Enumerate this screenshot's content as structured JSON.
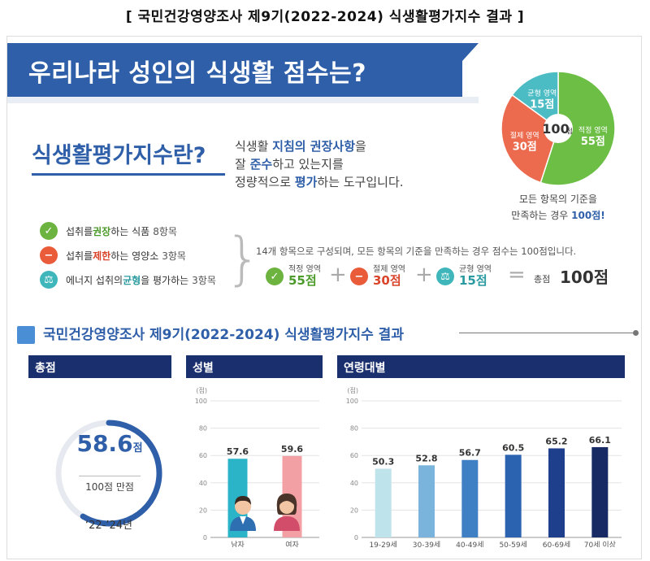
{
  "caption": "[ 국민건강영양조사 제9기(2022-2024) 식생활평가지수 결과 ]",
  "banner": {
    "title": "우리나라 성인의 식생활 점수는?"
  },
  "definition": {
    "title": "식생활평가지수란?",
    "line1_pre": "식생활 ",
    "line1_hl": "지침의 권장사항",
    "line1_post": "을",
    "line2_pre": "잘 ",
    "line2_hl": "준수",
    "line2_post": "하고 있는지를",
    "line3_pre": "정량적으로 ",
    "line3_hl": "평가",
    "line3_post": "하는 도구입니다."
  },
  "pie": {
    "center_value": "100",
    "center_unit": "점",
    "segments": [
      {
        "name": "적정 영역",
        "value": "55점",
        "score": 55,
        "color": "#6cbe45"
      },
      {
        "name": "절제 영역",
        "value": "30점",
        "score": 30,
        "color": "#ec6b4f"
      },
      {
        "name": "균형 영역",
        "value": "15점",
        "score": 15,
        "color": "#4bbcc3"
      }
    ],
    "caption_line1": "모든 항목의 기준을",
    "caption_line2_pre": "만족하는 경우 ",
    "caption_line2_hl": "100점!"
  },
  "components": [
    {
      "icon": "check-icon",
      "color": "#6cb33f",
      "pre": "섭취를 ",
      "hl": "권장",
      "post": "하는 식품",
      "count": "8항목"
    },
    {
      "icon": "minus-icon",
      "color": "#ea5b3a",
      "pre": "섭취를 ",
      "hl": "제한",
      "post": "하는 영양소",
      "count": "3항목"
    },
    {
      "icon": "scale-icon",
      "color": "#3fb6b9",
      "pre": "에너지 섭취의 ",
      "hl": "균형",
      "post": "을 평가하는",
      "count": "3항목"
    }
  ],
  "formula": {
    "note": "14개 항목으로 구성되며, 모든 항목의 기준을 만족하는 경우 점수는 100점입니다.",
    "items": [
      {
        "label": "적정 영역",
        "value": "55점",
        "color": "#4b9a2a"
      },
      {
        "label": "절제 영역",
        "value": "30점",
        "color": "#d9442b"
      },
      {
        "label": "균형 영역",
        "value": "15점",
        "color": "#2a9aa0"
      }
    ],
    "plus": "+",
    "equals": "=",
    "total_label": "총점",
    "total_value": "100점"
  },
  "section": {
    "title": "국민건강영양조사 제9기(2022-2024) 식생활평가지수 결과"
  },
  "panels": {
    "total": {
      "header": "총점",
      "value": "58.6",
      "unit": "점",
      "sub": "100점 만점",
      "period": "‘22-’24년",
      "score": 58.6,
      "max": 100
    },
    "sex": {
      "header": "성별"
    },
    "age": {
      "header": "연령대별"
    }
  },
  "chart_data": [
    {
      "type": "bar",
      "title": "성별",
      "ylabel": "(점)",
      "ylim": [
        0,
        100
      ],
      "yticks": [
        0,
        20,
        40,
        60,
        80,
        100
      ],
      "categories": [
        "남자",
        "여자"
      ],
      "values": [
        57.6,
        59.6
      ],
      "value_labels": [
        "57.6",
        "59.6"
      ],
      "colors": [
        "#2bb4c8",
        "#f3a0a4"
      ]
    },
    {
      "type": "bar",
      "title": "연령대별",
      "ylabel": "(점)",
      "ylim": [
        0,
        100
      ],
      "yticks": [
        0,
        20,
        40,
        60,
        80,
        100
      ],
      "categories": [
        "19-29세",
        "30-39세",
        "40-49세",
        "50-59세",
        "60-69세",
        "70세 이상"
      ],
      "values": [
        50.3,
        52.8,
        56.7,
        60.5,
        65.2,
        66.1
      ],
      "value_labels": [
        "50.3",
        "52.8",
        "56.7",
        "60.5",
        "65.2",
        "66.1"
      ],
      "colors": [
        "#bfe3ea",
        "#7ab3dc",
        "#3f7fc4",
        "#2b63b0",
        "#1d3f8c",
        "#172a63"
      ]
    }
  ]
}
